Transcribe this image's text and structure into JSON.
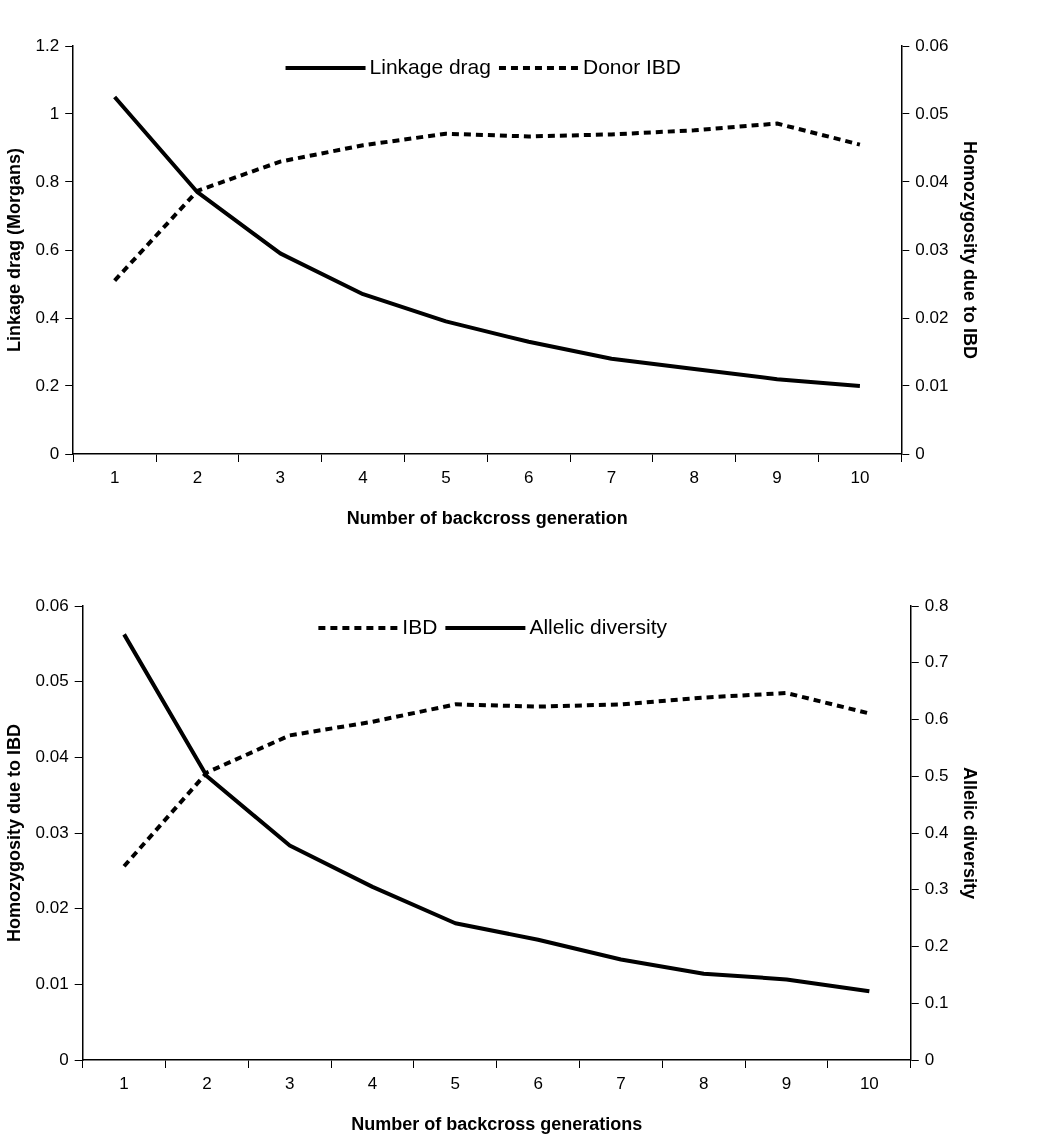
{
  "chart_data": [
    {
      "type": "line",
      "categories": [
        "1",
        "2",
        "3",
        "4",
        "5",
        "6",
        "7",
        "8",
        "9",
        "10"
      ],
      "xlabel": "Number of backcross generation",
      "ylabel": "Linkage drag (Morgans)",
      "y2label": "Homozygosity due to IBD",
      "ylim": [
        0,
        1.2
      ],
      "yticks": [
        0,
        0.2,
        0.4,
        0.6,
        0.8,
        1,
        1.2
      ],
      "y2lim": [
        0,
        0.06
      ],
      "y2ticks": [
        0,
        0.01,
        0.02,
        0.03,
        0.04,
        0.05,
        0.06
      ],
      "legend": "top",
      "marker": "none",
      "series": [
        {
          "name": "Linkage drag",
          "color": "#000000",
          "line_style": "solid",
          "values": [
            1.05,
            0.77,
            0.59,
            0.47,
            0.39,
            0.33,
            0.28,
            0.25,
            0.22,
            0.2
          ]
        },
        {
          "name": "Donor IBD",
          "color": "#000000",
          "line_style": "dashed",
          "axis": "y2",
          "values": [
            0.0255,
            0.0387,
            0.043,
            0.0454,
            0.0471,
            0.0467,
            0.047,
            0.0476,
            0.0486,
            0.0455
          ]
        }
      ]
    },
    {
      "type": "line",
      "categories": [
        "1",
        "2",
        "3",
        "4",
        "5",
        "6",
        "7",
        "8",
        "9",
        "10"
      ],
      "xlabel": "Number of backcross generations",
      "ylabel": "Homozygosity due to IBD",
      "y2label": "Allelic diversity",
      "ylim": [
        0,
        0.06
      ],
      "yticks": [
        0,
        0.01,
        0.02,
        0.03,
        0.04,
        0.05,
        0.06
      ],
      "y2lim": [
        0,
        0.8
      ],
      "y2ticks": [
        0,
        0.1,
        0.2,
        0.3,
        0.4,
        0.5,
        0.6,
        0.7,
        0.8
      ],
      "legend": "top",
      "marker": "none",
      "series": [
        {
          "name": "IBD",
          "color": "#000000",
          "line_style": "dashed",
          "values": [
            0.0256,
            0.038,
            0.0429,
            0.0447,
            0.047,
            0.0467,
            0.047,
            0.0479,
            0.0485,
            0.0458
          ]
        },
        {
          "name": "Allelic diversity",
          "color": "#000000",
          "line_style": "solid",
          "axis": "y2",
          "values": [
            0.75,
            0.5,
            0.378,
            0.305,
            0.241,
            0.212,
            0.177,
            0.152,
            0.142,
            0.121
          ]
        }
      ]
    }
  ]
}
